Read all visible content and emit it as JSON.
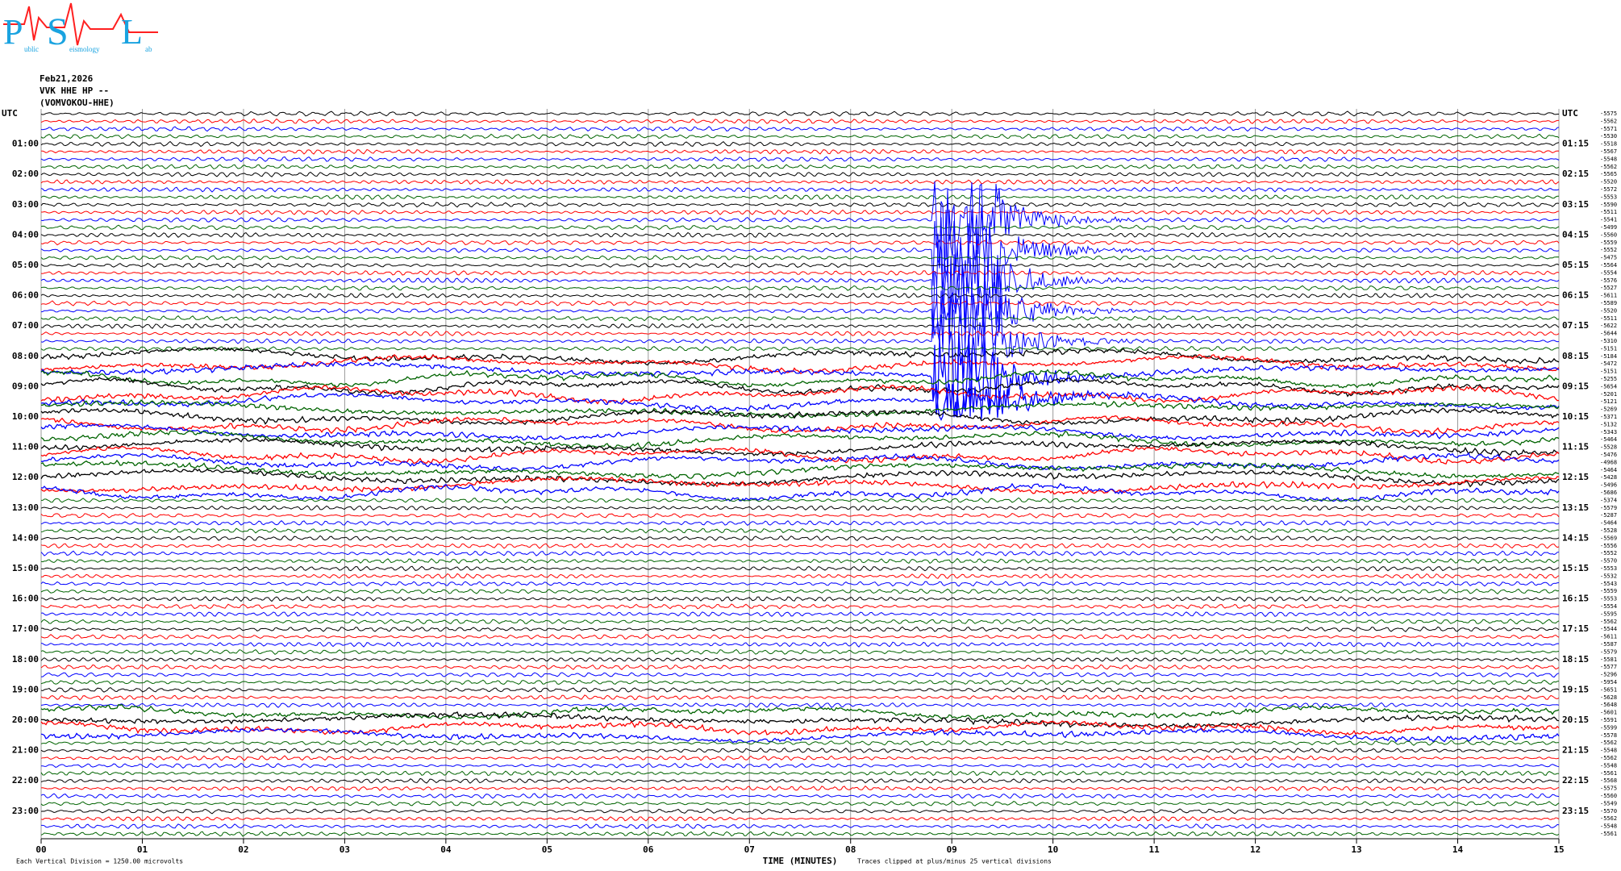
{
  "chart_data": {
    "type": "helicorder",
    "logo": {
      "letters": [
        "P",
        "S",
        "L"
      ],
      "small": [
        "ublic",
        "eismology",
        "ab"
      ]
    },
    "header": [
      "Feb21,2026",
      "VVK HHE HP --",
      "(VOMVOKOU-HHE)"
    ],
    "xlabel": "TIME (MINUTES)",
    "xlim": [
      0,
      15
    ],
    "xticks": [
      {
        "value": 0,
        "label": "00"
      },
      {
        "value": 1,
        "label": "01"
      },
      {
        "value": 2,
        "label": "02"
      },
      {
        "value": 3,
        "label": "03"
      },
      {
        "value": 4,
        "label": "04"
      },
      {
        "value": 5,
        "label": "05"
      },
      {
        "value": 6,
        "label": "06"
      },
      {
        "value": 7,
        "label": "07"
      },
      {
        "value": 8,
        "label": "08"
      },
      {
        "value": 9,
        "label": "09"
      },
      10,
      11,
      12,
      13,
      14,
      15
    ],
    "left_labels": [
      "UTC",
      "01:00",
      "02:00",
      "03:00",
      "04:00",
      "05:00",
      "06:00",
      "07:00",
      "08:00",
      "09:00",
      "10:00",
      "11:00",
      "12:00",
      "13:00",
      "14:00",
      "15:00",
      "16:00",
      "17:00",
      "18:00",
      "19:00",
      "20:00",
      "21:00",
      "22:00",
      "23:00"
    ],
    "right_labels": [
      "UTC",
      "01:15",
      "02:15",
      "03:15",
      "04:15",
      "05:15",
      "06:15",
      "07:15",
      "08:15",
      "09:15",
      "10:15",
      "11:15",
      "12:15",
      "13:15",
      "14:15",
      "15:15",
      "16:15",
      "17:15",
      "18:15",
      "19:15",
      "20:15",
      "21:15",
      "22:15",
      "23:15"
    ],
    "trace_offsets": [
      "-5575",
      "-5562",
      "-5571",
      "-5530",
      "-5518",
      "-5567",
      "-5548",
      "-5562",
      "-5565",
      "-5520",
      "-5572",
      "-5553",
      "-5590",
      "-5511",
      "-5541",
      "-5499",
      "-5560",
      "-5559",
      "-5552",
      "-5475",
      "-5564",
      "-5554",
      "-5576",
      "-5527",
      "-5611",
      "-5589",
      "-5520",
      "-5511",
      "-5622",
      "-5644",
      "-5310",
      "-5151",
      "-5184",
      "-5472",
      "-5151",
      "-5255",
      "-5654",
      "-5201",
      "-5121",
      "-5269",
      "-5371",
      "-5132",
      "-5343",
      "-5464",
      "-5528",
      "-5476",
      "-4968",
      "-5464",
      "-5428",
      "-5496",
      "-5686",
      "-5374",
      "-5579",
      "-5287",
      "-5464",
      "-5528",
      "-5569",
      "-5556",
      "-5552",
      "-5570",
      "-5553",
      "-5532",
      "-5543",
      "-5559",
      "-5553",
      "-5554",
      "-5595",
      "-5562",
      "-5544",
      "-5611",
      "-5587",
      "-5579",
      "-5581",
      "-5577",
      "-5296",
      "-5954",
      "-5651",
      "-5628",
      "-5648",
      "-5601",
      "-5591",
      "-5599",
      "-5578",
      "-5562",
      "-5548",
      "-5562",
      "-5548",
      "-5561",
      "-5568",
      "-5575",
      "-5560",
      "-5549",
      "-5570",
      "-5562",
      "-5548",
      "-5561"
    ],
    "notes": [
      "Each Vertical Division = 1250.00 microvolts",
      "Traces clipped at plus/minus 25 vertical divisions"
    ],
    "trace_colors": [
      "#000000",
      "#ff0000",
      "#0000ff",
      "#006400"
    ]
  }
}
